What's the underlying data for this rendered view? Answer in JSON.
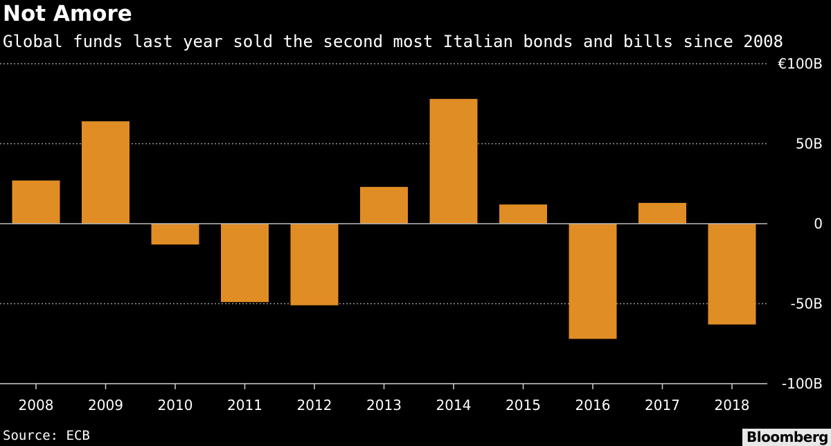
{
  "title": "Not Amore",
  "subtitle": "Global funds last year sold the second most Italian bonds and bills since 2008",
  "source": "Source: ECB",
  "brand": "Bloomberg",
  "colors": {
    "background": "#000000",
    "bar": "#e08d25",
    "grid": "#9a9a9a",
    "text": "#ffffff"
  },
  "chart_data": {
    "type": "bar",
    "title": "Not Amore",
    "subtitle": "Global funds last year sold the second most Italian bonds and bills since 2008",
    "xlabel": "",
    "ylabel": "",
    "categories": [
      "2008",
      "2009",
      "2010",
      "2011",
      "2012",
      "2013",
      "2014",
      "2015",
      "2016",
      "2017",
      "2018"
    ],
    "values": [
      27,
      64,
      -13,
      -49,
      -51,
      23,
      78,
      12,
      -72,
      13,
      -63
    ],
    "ylim": [
      -100,
      100
    ],
    "yticks": [
      100,
      50,
      0,
      -50,
      -100
    ],
    "ytick_labels": [
      "€100B",
      "50B",
      "0",
      "-50B",
      "-100B"
    ],
    "grid": true,
    "legend": "none"
  }
}
